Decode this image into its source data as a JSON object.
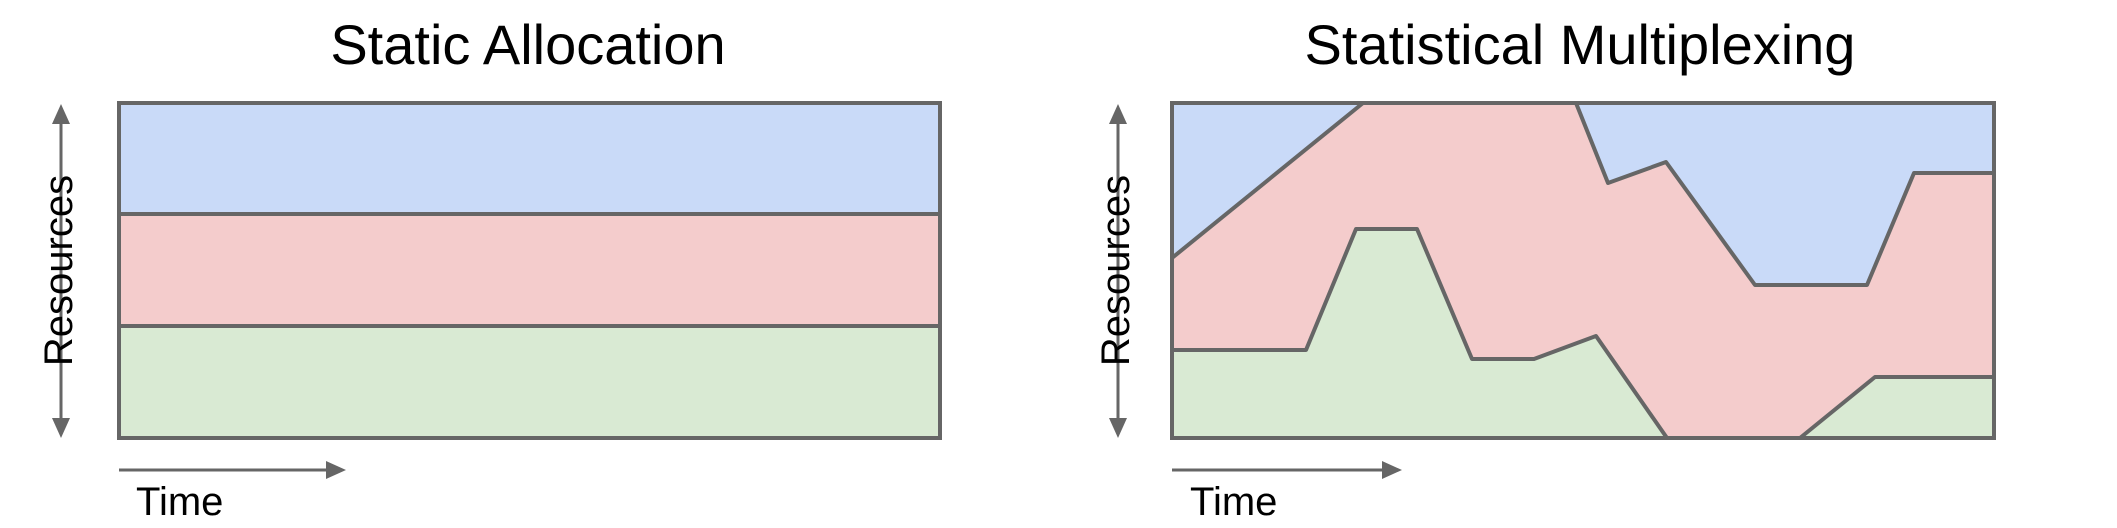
{
  "left_panel": {
    "title": "Static Allocation",
    "y_axis_label": "Resources",
    "x_axis_label": "Time"
  },
  "right_panel": {
    "title": "Statistical Multiplexing",
    "y_axis_label": "Resources",
    "x_axis_label": "Time"
  },
  "colors": {
    "blue": "#c9daf8",
    "red": "#f4cccc",
    "green": "#d9ead3",
    "stroke": "#666666"
  }
}
